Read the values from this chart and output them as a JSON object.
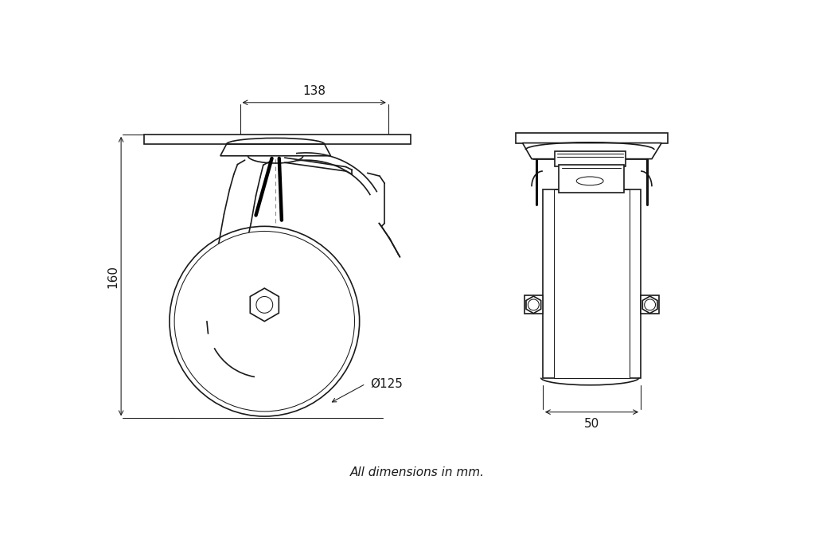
{
  "bg": "#ffffff",
  "lc": "#1a1a1a",
  "lc_bold": "#000000",
  "lc_dim": "#1a1a1a",
  "lc_dash": "#888888",
  "fig_w": 10.24,
  "fig_h": 7.01,
  "dpi": 100,
  "fs": 11,
  "lw": 1.2,
  "lw_t": 0.75,
  "lw_b": 3.2,
  "footer": "All dimensions in mm.",
  "d138": "138",
  "d160": "160",
  "d125": "Ø125",
  "d50": "50"
}
